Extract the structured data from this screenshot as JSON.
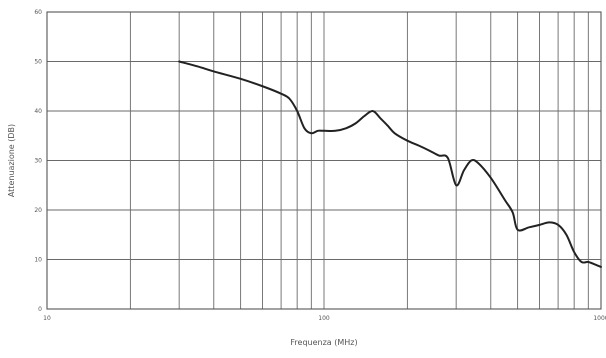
{
  "chart_data": {
    "type": "line",
    "title": "",
    "xlabel": "Frequenza (MHz)",
    "ylabel": "Attenuazione (DB)",
    "x_scale": "log",
    "xlim": [
      10,
      1000
    ],
    "ylim": [
      0,
      60
    ],
    "grid": true,
    "x_ticks": [
      10,
      100,
      1000
    ],
    "x_tick_labels": [
      "10",
      "100",
      "1000"
    ],
    "y_ticks": [
      0,
      10,
      20,
      30,
      40,
      50,
      60
    ],
    "y_tick_labels": [
      "0",
      "10",
      "20",
      "30",
      "40",
      "50",
      "60"
    ],
    "series": [
      {
        "x": [
          30,
          35,
          40,
          50,
          60,
          70,
          75,
          80,
          85,
          90,
          95,
          100,
          110,
          120,
          130,
          140,
          150,
          160,
          170,
          180,
          200,
          220,
          240,
          260,
          280,
          300,
          320,
          340,
          360,
          400,
          450,
          480,
          500,
          550,
          600,
          650,
          700,
          750,
          800,
          850,
          900,
          950,
          1000
        ],
        "y": [
          50,
          49,
          48,
          46.5,
          45,
          43.5,
          42.5,
          40,
          36.5,
          35.5,
          36,
          36,
          36,
          36.5,
          37.5,
          39,
          40,
          38.5,
          37,
          35.5,
          34,
          33,
          32,
          31,
          30.5,
          25,
          28,
          30,
          29.5,
          26.5,
          22,
          19.5,
          16,
          16.5,
          17,
          17.5,
          17,
          15,
          11.5,
          9.5,
          9.5,
          9,
          8.5
        ]
      }
    ]
  }
}
